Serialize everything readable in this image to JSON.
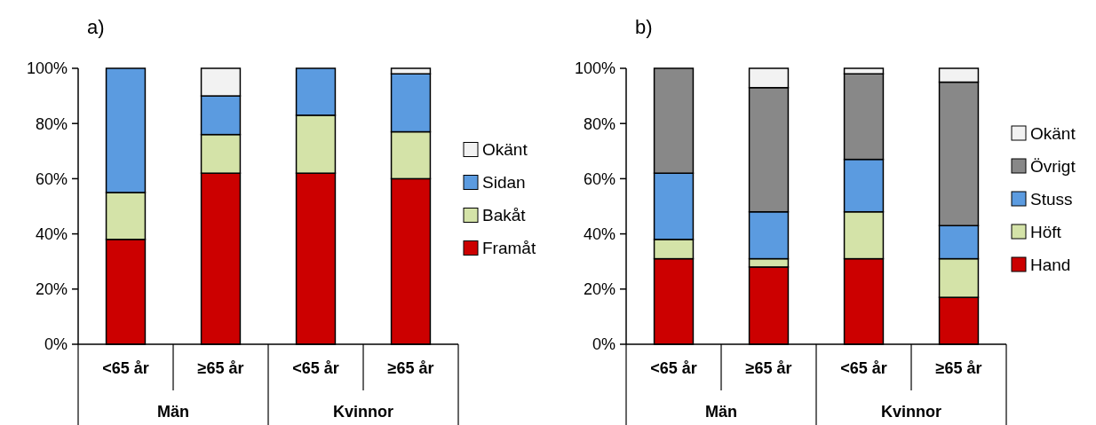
{
  "chart_data": [
    {
      "type": "bar",
      "title": "a)",
      "stacked": true,
      "categories": [
        "<65 år",
        "≥65 år",
        "<65 år",
        "≥65 år"
      ],
      "annotations": [
        "Män",
        "Kvinnor"
      ],
      "ylim": [
        0,
        100
      ],
      "yticks": [
        {
          "value": 0,
          "label": "0%"
        },
        {
          "value": 20,
          "label": "20%"
        },
        {
          "value": 40,
          "label": "40%"
        },
        {
          "value": 60,
          "label": "60%"
        },
        {
          "value": 80,
          "label": "80%"
        },
        {
          "value": 100,
          "label": "100%"
        }
      ],
      "legend": "right",
      "series": [
        {
          "name": "Framåt",
          "color": "#cc0000",
          "values": [
            38,
            62,
            62,
            60
          ]
        },
        {
          "name": "Bakåt",
          "color": "#d4e3a8",
          "values": [
            17,
            14,
            21,
            17
          ]
        },
        {
          "name": "Sidan",
          "color": "#5b9be0",
          "values": [
            45,
            14,
            17,
            21
          ]
        },
        {
          "name": "Okänt",
          "color": "#f2f2f2",
          "values": [
            0,
            10,
            0,
            2
          ]
        }
      ]
    },
    {
      "type": "bar",
      "title": "b)",
      "stacked": true,
      "categories": [
        "<65 år",
        "≥65 år",
        "<65 år",
        "≥65 år"
      ],
      "annotations": [
        "Män",
        "Kvinnor"
      ],
      "ylim": [
        0,
        100
      ],
      "yticks": [
        {
          "value": 0,
          "label": "0%"
        },
        {
          "value": 20,
          "label": "20%"
        },
        {
          "value": 40,
          "label": "40%"
        },
        {
          "value": 60,
          "label": "60%"
        },
        {
          "value": 80,
          "label": "80%"
        },
        {
          "value": 100,
          "label": "100%"
        }
      ],
      "legend": "right",
      "series": [
        {
          "name": "Hand",
          "color": "#cc0000",
          "values": [
            31,
            28,
            31,
            17
          ]
        },
        {
          "name": "Höft",
          "color": "#d4e3a8",
          "values": [
            7,
            3,
            17,
            14
          ]
        },
        {
          "name": "Stuss",
          "color": "#5b9be0",
          "values": [
            24,
            17,
            19,
            12
          ]
        },
        {
          "name": "Övrigt",
          "color": "#888888",
          "values": [
            38,
            45,
            31,
            52
          ]
        },
        {
          "name": "Okänt",
          "color": "#f2f2f2",
          "values": [
            0,
            7,
            2,
            5
          ]
        }
      ]
    }
  ]
}
